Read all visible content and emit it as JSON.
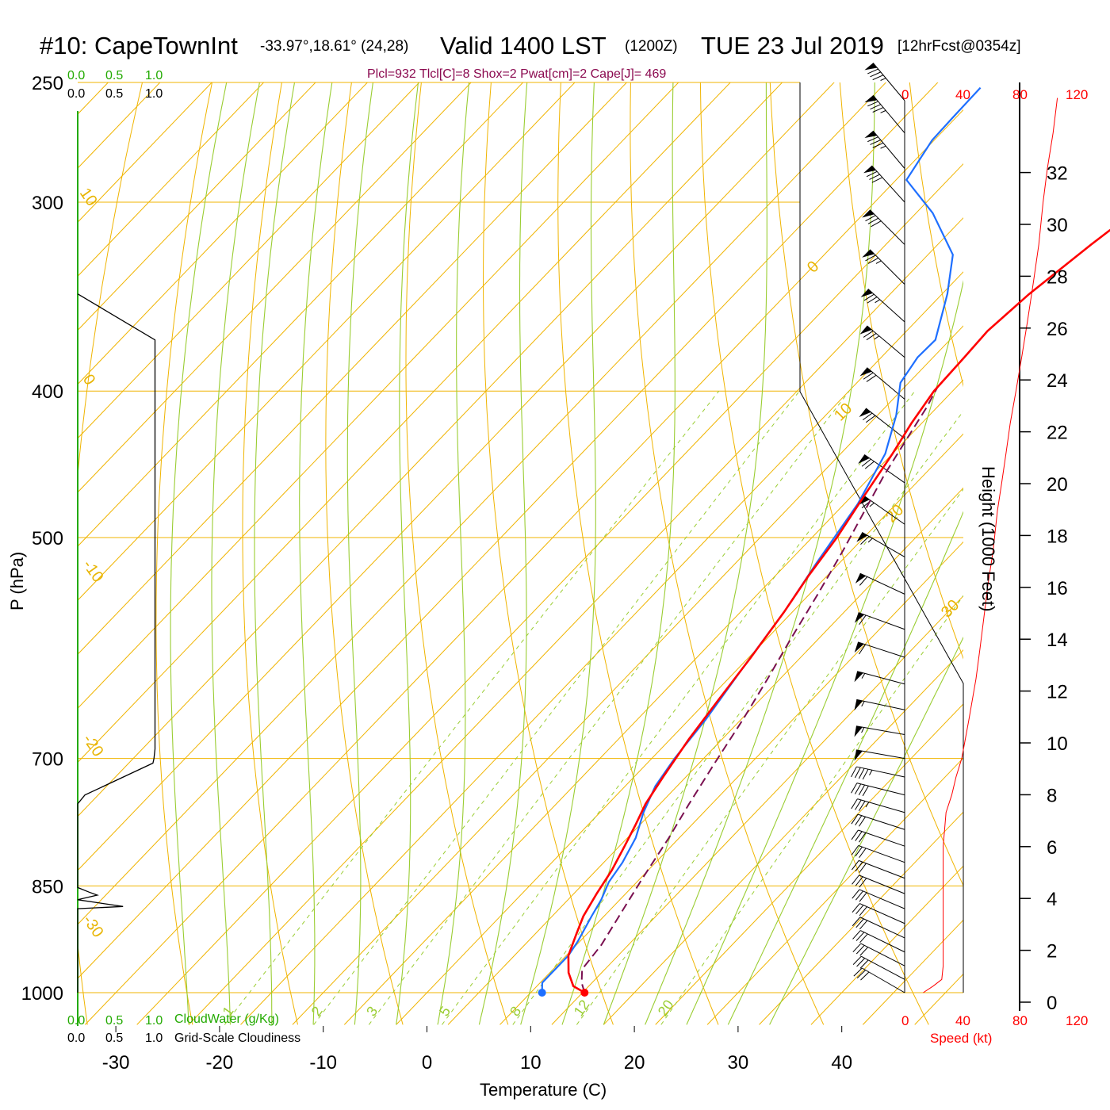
{
  "header": {
    "station": "#10: CapeTownInt",
    "coords": "-33.97°,18.61° (24,28)",
    "valid": "Valid 1400 LST",
    "utc": "(1200Z)",
    "date": "TUE 23 Jul 2019",
    "forecast": "[12hrFcst@0354z]"
  },
  "indices_line": "Plcl=932 Tlcl[C]=8 Shox=2 Pwat[cm]=2 Cape[J]= 469",
  "scales": {
    "cloudwater_ticks": [
      "0.0",
      "0.5",
      "1.0"
    ],
    "cloudiness_ticks": [
      "0.0",
      "0.5",
      "1.0"
    ],
    "cloudwater_label": "CloudWater (g/Kg)",
    "cloudiness_label": "Grid-Scale Cloudiness"
  },
  "speed_axis": {
    "ticks": [
      "0",
      "40",
      "80",
      "120"
    ],
    "label": "Speed (kt)"
  },
  "axis_titles": {
    "x": "Temperature (C)",
    "y": "P (hPa)",
    "height": "Height (1000 Feet)"
  },
  "colors": {
    "temperature": "#ff0000",
    "dewpoint": "#1e6fff",
    "parcel": "#7a1050",
    "isotherm": "#f0b400",
    "adiabat": "#9acd32",
    "mixing_ratio": "#9acd32",
    "cloud_scale": "#22aa00",
    "speed": "#ff0000"
  },
  "chart_data": {
    "type": "line",
    "chart_kind": "skew-T log-P sounding",
    "x_ticks": [
      -30,
      -20,
      -10,
      0,
      10,
      20,
      30,
      40
    ],
    "xlim": [
      -33,
      47
    ],
    "pressure_ticks": [
      250,
      300,
      400,
      500,
      700,
      850,
      1000
    ],
    "ylim_hpa": [
      1000,
      250
    ],
    "isotherm_labels": [
      "0",
      "10",
      "20",
      "30",
      "10",
      "0",
      "-10",
      "-20",
      "-30"
    ],
    "mixing_ratio_labels": [
      "1",
      "2",
      "3",
      "5",
      "8",
      "12",
      "20"
    ],
    "height_ticks_kft": [
      0,
      2,
      4,
      6,
      8,
      10,
      12,
      14,
      16,
      18,
      20,
      22,
      24,
      26,
      28,
      30,
      32
    ],
    "series": [
      {
        "name": "Temperature",
        "points": [
          [
            15.2,
            1000
          ],
          [
            13.5,
            990
          ],
          [
            11.8,
            970
          ],
          [
            10.2,
            945
          ],
          [
            9.0,
            915
          ],
          [
            8.0,
            890
          ],
          [
            7.2,
            860
          ],
          [
            6.5,
            830
          ],
          [
            5.5,
            800
          ],
          [
            4.6,
            775
          ],
          [
            3.6,
            750
          ],
          [
            2.8,
            720
          ],
          [
            1.8,
            680
          ],
          [
            1.0,
            640
          ],
          [
            0.2,
            600
          ],
          [
            -0.8,
            560
          ],
          [
            -1.8,
            530
          ],
          [
            -2.6,
            500
          ],
          [
            -3.8,
            470
          ],
          [
            -5.0,
            440
          ],
          [
            -6.0,
            420
          ],
          [
            -6.8,
            400
          ],
          [
            -7.0,
            380
          ],
          [
            -7.2,
            365
          ],
          [
            -6.6,
            345
          ],
          [
            -5.2,
            320
          ],
          [
            -3.8,
            300
          ],
          [
            -2.4,
            280
          ],
          [
            -0.6,
            262
          ],
          [
            0.8,
            252
          ]
        ]
      },
      {
        "name": "Dewpoint",
        "points": [
          [
            11.1,
            1000
          ],
          [
            10.2,
            985
          ],
          [
            10.2,
            945
          ],
          [
            9.8,
            925
          ],
          [
            8.8,
            890
          ],
          [
            8.2,
            868
          ],
          [
            7.3,
            845
          ],
          [
            6.8,
            820
          ],
          [
            5.8,
            790
          ],
          [
            4.2,
            760
          ],
          [
            2.9,
            730
          ],
          [
            2.2,
            700
          ],
          [
            1.6,
            660
          ],
          [
            0.4,
            610
          ],
          [
            -0.8,
            560
          ],
          [
            -2.2,
            520
          ],
          [
            -3.7,
            475
          ],
          [
            -5.7,
            440
          ],
          [
            -8.2,
            415
          ],
          [
            -10.8,
            395
          ],
          [
            -11.5,
            380
          ],
          [
            -11.4,
            370
          ],
          [
            -14.5,
            345
          ],
          [
            -17.6,
            325
          ],
          [
            -23.4,
            305
          ],
          [
            -29.0,
            290
          ],
          [
            -30.2,
            273
          ],
          [
            -30.3,
            264
          ],
          [
            -30.4,
            252
          ]
        ]
      },
      {
        "name": "Parcel",
        "points": [
          [
            15.2,
            1000
          ],
          [
            14.0,
            985
          ],
          [
            12.8,
            965
          ],
          [
            12.4,
            930
          ],
          [
            11.2,
            880
          ],
          [
            10.2,
            840
          ],
          [
            9.0,
            790
          ],
          [
            7.8,
            750
          ],
          [
            6.5,
            705
          ],
          [
            5.2,
            660
          ],
          [
            3.8,
            620
          ],
          [
            2.4,
            585
          ],
          [
            0.8,
            545
          ],
          [
            -0.8,
            510
          ],
          [
            -2.4,
            480
          ],
          [
            -3.8,
            455
          ],
          [
            -5.0,
            430
          ],
          [
            -6.0,
            410
          ],
          [
            -6.8,
            398
          ]
        ]
      }
    ],
    "wind_speed_profile_kt": [
      [
        13,
        1000
      ],
      [
        20,
        990
      ],
      [
        26,
        980
      ],
      [
        27,
        960
      ],
      [
        27,
        940
      ],
      [
        27,
        920
      ],
      [
        27,
        900
      ],
      [
        27,
        880
      ],
      [
        27,
        850
      ],
      [
        27,
        820
      ],
      [
        27,
        800
      ],
      [
        28,
        780
      ],
      [
        29,
        760
      ],
      [
        33,
        740
      ],
      [
        36,
        720
      ],
      [
        40,
        700
      ],
      [
        45,
        660
      ],
      [
        50,
        620
      ],
      [
        53,
        590
      ],
      [
        56,
        560
      ],
      [
        58,
        540
      ],
      [
        62,
        510
      ],
      [
        65,
        480
      ],
      [
        68,
        460
      ],
      [
        71,
        440
      ],
      [
        74,
        420
      ],
      [
        78,
        400
      ],
      [
        82,
        380
      ],
      [
        86,
        360
      ],
      [
        90,
        340
      ],
      [
        94,
        320
      ],
      [
        97,
        300
      ],
      [
        100,
        285
      ],
      [
        104,
        270
      ],
      [
        107,
        256
      ]
    ],
    "cloudiness_profile": [
      [
        0.0,
        1000
      ],
      [
        0.0,
        900
      ],
      [
        0.0,
        880
      ],
      [
        0.44,
        877
      ],
      [
        0.0,
        868
      ],
      [
        0.19,
        862
      ],
      [
        0.11,
        858
      ],
      [
        0.0,
        852
      ],
      [
        0.0,
        750
      ],
      [
        0.07,
        740
      ],
      [
        0.73,
        705
      ],
      [
        0.74,
        700
      ],
      [
        0.75,
        690
      ],
      [
        0.75,
        500
      ],
      [
        0.75,
        370
      ],
      [
        0.0,
        345
      ]
    ],
    "wind_barbs": [
      {
        "p": 1000,
        "kt": 30,
        "dir": 300
      },
      {
        "p": 980,
        "kt": 30,
        "dir": 298
      },
      {
        "p": 960,
        "kt": 30,
        "dir": 297
      },
      {
        "p": 940,
        "kt": 30,
        "dir": 296
      },
      {
        "p": 920,
        "kt": 30,
        "dir": 295
      },
      {
        "p": 900,
        "kt": 30,
        "dir": 294
      },
      {
        "p": 880,
        "kt": 30,
        "dir": 293
      },
      {
        "p": 860,
        "kt": 30,
        "dir": 292
      },
      {
        "p": 840,
        "kt": 30,
        "dir": 291
      },
      {
        "p": 820,
        "kt": 30,
        "dir": 290
      },
      {
        "p": 800,
        "kt": 30,
        "dir": 289
      },
      {
        "p": 780,
        "kt": 30,
        "dir": 288
      },
      {
        "p": 760,
        "kt": 35,
        "dir": 286
      },
      {
        "p": 740,
        "kt": 40,
        "dir": 284
      },
      {
        "p": 720,
        "kt": 45,
        "dir": 282
      },
      {
        "p": 700,
        "kt": 50,
        "dir": 280
      },
      {
        "p": 675,
        "kt": 55,
        "dir": 280
      },
      {
        "p": 650,
        "kt": 55,
        "dir": 282
      },
      {
        "p": 625,
        "kt": 55,
        "dir": 285
      },
      {
        "p": 600,
        "kt": 60,
        "dir": 288
      },
      {
        "p": 575,
        "kt": 60,
        "dir": 290
      },
      {
        "p": 545,
        "kt": 60,
        "dir": 295
      },
      {
        "p": 515,
        "kt": 65,
        "dir": 300
      },
      {
        "p": 490,
        "kt": 65,
        "dir": 305
      },
      {
        "p": 460,
        "kt": 70,
        "dir": 305
      },
      {
        "p": 430,
        "kt": 70,
        "dir": 308
      },
      {
        "p": 405,
        "kt": 70,
        "dir": 310
      },
      {
        "p": 380,
        "kt": 75,
        "dir": 310
      },
      {
        "p": 360,
        "kt": 75,
        "dir": 312
      },
      {
        "p": 340,
        "kt": 75,
        "dir": 315
      },
      {
        "p": 320,
        "kt": 80,
        "dir": 315
      },
      {
        "p": 300,
        "kt": 80,
        "dir": 318
      },
      {
        "p": 285,
        "kt": 85,
        "dir": 320
      },
      {
        "p": 270,
        "kt": 85,
        "dir": 320
      },
      {
        "p": 257,
        "kt": 85,
        "dir": 320
      }
    ]
  }
}
